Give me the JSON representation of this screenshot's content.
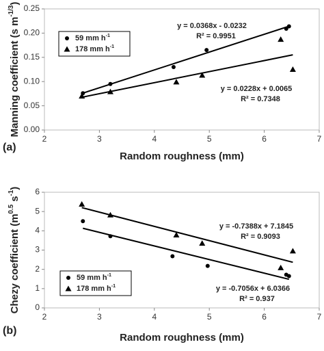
{
  "chart_data": [
    {
      "type": "scatter",
      "panel_label": "(a)",
      "xlabel": [
        {
          "text": "Random  roughness (mm)"
        }
      ],
      "ylabel": [
        {
          "text": "Manning coefficient (s m"
        },
        {
          "sup": "-1/3"
        },
        {
          "text": ")"
        }
      ],
      "xlim": [
        2,
        7
      ],
      "xticks": [
        2,
        3,
        4,
        5,
        6,
        7
      ],
      "ylim": [
        0,
        0.25
      ],
      "yticks": [
        {
          "value": 0,
          "label": "0.00"
        },
        {
          "value": 0.05,
          "label": "0.05"
        },
        {
          "value": 0.1,
          "label": "0.10"
        },
        {
          "value": 0.15,
          "label": "0.15"
        },
        {
          "value": 0.2,
          "label": "0.20"
        },
        {
          "value": 0.25,
          "label": "0.25"
        }
      ],
      "series": [
        {
          "name": [
            {
              "text": "59 mm  h"
            },
            {
              "sup": "-1"
            }
          ],
          "marker": "circle",
          "color": "#000000",
          "x": [
            2.7,
            3.2,
            4.35,
            4.95,
            6.4,
            6.45
          ],
          "values": [
            0.076,
            0.095,
            0.13,
            0.165,
            0.209,
            0.214
          ]
        },
        {
          "name": [
            {
              "text": "178 mm  h"
            },
            {
              "sup": "-1"
            }
          ],
          "marker": "triangle",
          "color": "#000000",
          "x": [
            2.68,
            3.2,
            4.4,
            4.87,
            6.3,
            6.52
          ],
          "values": [
            0.07,
            0.079,
            0.099,
            0.113,
            0.187,
            0.125
          ]
        }
      ],
      "trendlines": [
        {
          "slope": 0.0368,
          "intercept": -0.0232,
          "x": [
            2.7,
            6.45
          ],
          "equation": "y = 0.0368x - 0.0232",
          "r2": "R² = 0.9951"
        },
        {
          "slope": 0.0228,
          "intercept": 0.0065,
          "x": [
            2.68,
            6.52
          ],
          "equation": "y = 0.0228x + 0.0065",
          "r2": "R² = 0.7348"
        }
      ]
    },
    {
      "type": "scatter",
      "panel_label": "(b)",
      "xlabel": [
        {
          "text": "Random  roughness (mm)"
        }
      ],
      "ylabel": [
        {
          "text": "Chezy coefficient (m"
        },
        {
          "sup": "0.5"
        },
        {
          "text": " s"
        },
        {
          "sup": "-1"
        },
        {
          "text": ")"
        }
      ],
      "xlim": [
        2,
        7
      ],
      "xticks": [
        2,
        3,
        4,
        5,
        6,
        7
      ],
      "ylim": [
        0,
        6
      ],
      "yticks": [
        0,
        1,
        2,
        3,
        4,
        5,
        6
      ],
      "series": [
        {
          "name": [
            {
              "text": "59 mm  h"
            },
            {
              "sup": "-1"
            }
          ],
          "marker": "circle",
          "color": "#000000",
          "x": [
            2.7,
            3.2,
            4.33,
            4.97,
            6.4,
            6.45
          ],
          "values": [
            4.5,
            3.72,
            2.68,
            2.18,
            1.72,
            1.65
          ]
        },
        {
          "name": [
            {
              "text": "178 mm  h"
            },
            {
              "sup": "-1"
            }
          ],
          "marker": "triangle",
          "color": "#000000",
          "x": [
            2.68,
            3.2,
            4.4,
            4.87,
            6.3,
            6.52
          ],
          "values": [
            5.38,
            4.82,
            3.78,
            3.35,
            2.08,
            2.95
          ]
        }
      ],
      "trendlines": [
        {
          "slope": -0.7056,
          "intercept": 6.0366,
          "x": [
            2.7,
            6.45
          ],
          "equation": "y = -0.7056x + 6.0366",
          "r2": "R² = 0.937"
        },
        {
          "slope": -0.7388,
          "intercept": 7.1845,
          "x": [
            2.68,
            6.52
          ],
          "equation": "y = -0.7388x + 7.1845",
          "r2": "R² = 0.9093"
        }
      ]
    }
  ]
}
